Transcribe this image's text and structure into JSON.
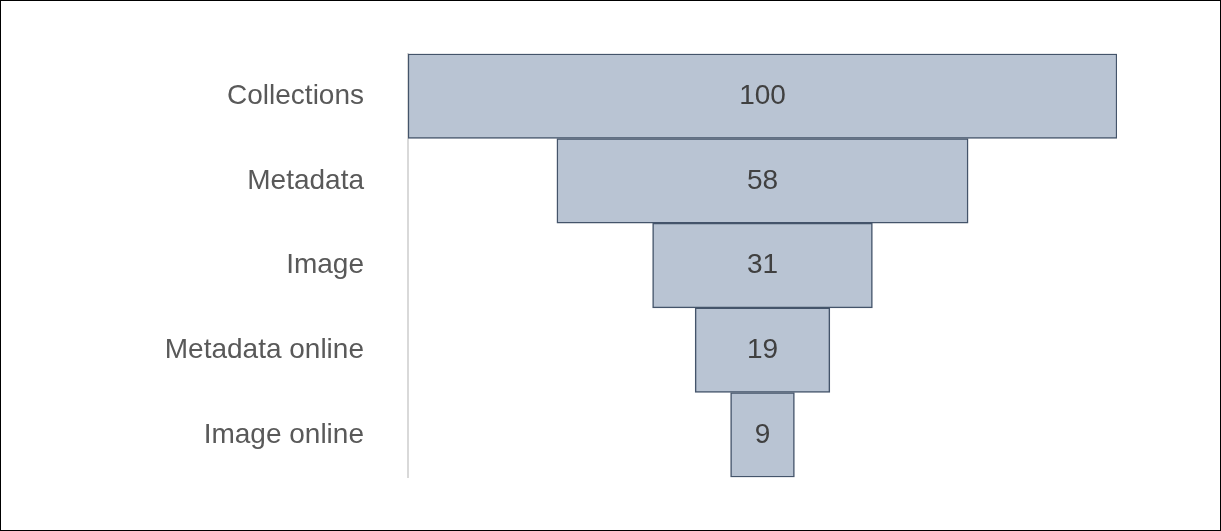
{
  "chart_data": {
    "type": "other",
    "categories": [
      "Collections",
      "Metadata",
      "Image",
      "Metadata online",
      "Image online"
    ],
    "values": [
      100,
      58,
      31,
      19,
      9
    ],
    "color": "#b9c4d3",
    "data_labels": true
  }
}
